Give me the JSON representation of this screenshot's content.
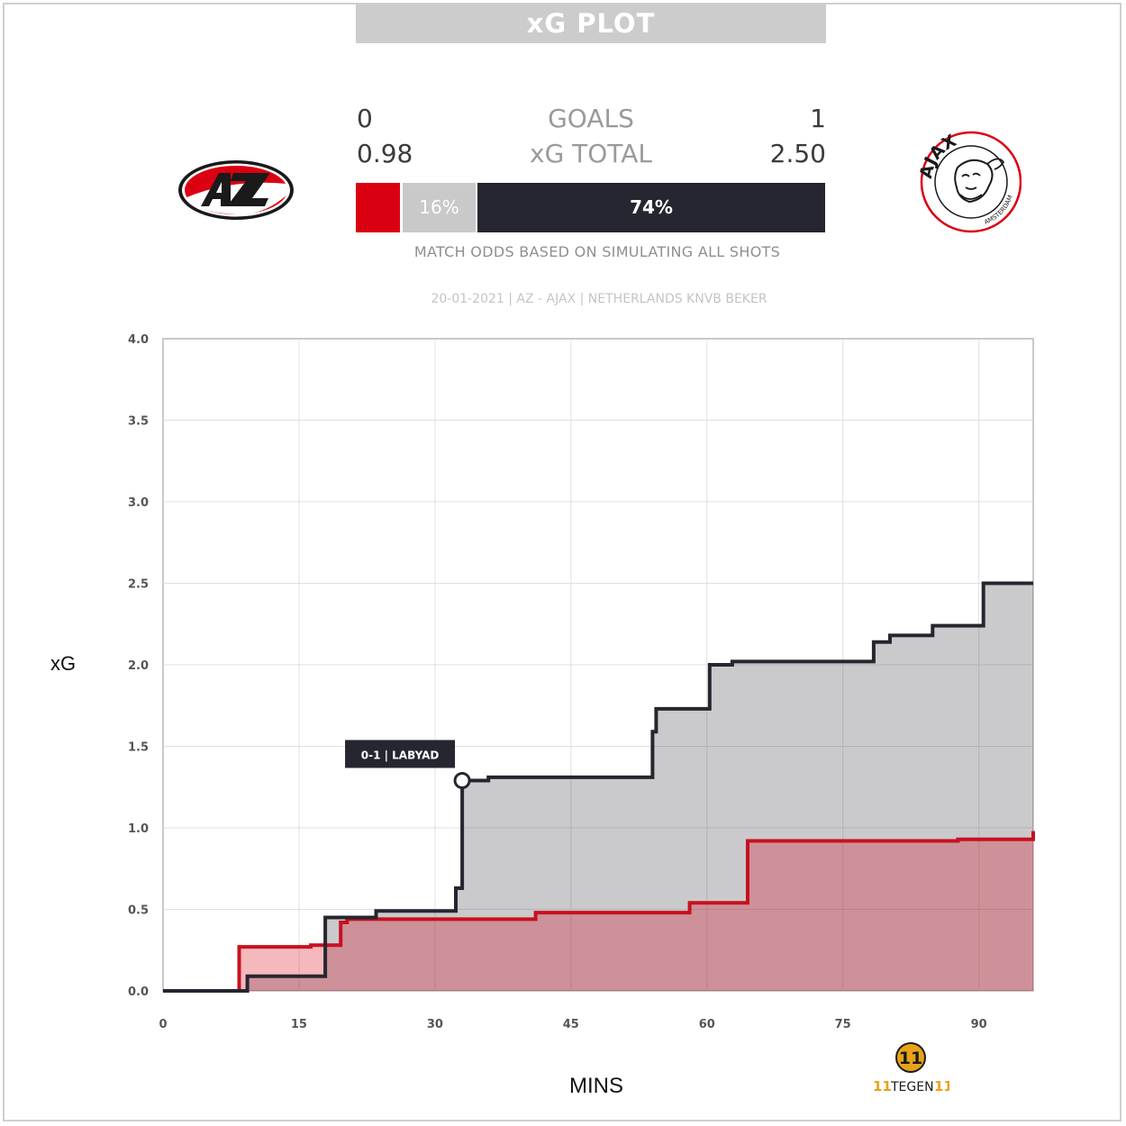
{
  "title": "xG PLOT",
  "teams": {
    "home": {
      "name": "AZ",
      "goals": "0",
      "xg_total": "0.98",
      "color": "#db0011"
    },
    "away": {
      "name": "AJAX",
      "goals": "1",
      "xg_total": "2.50",
      "color": "#262630",
      "logo_ring_text": "AJAX",
      "logo_sub_text": "AMSTERDAM"
    }
  },
  "labels": {
    "goals": "GOALS",
    "xg_total": "xG TOTAL"
  },
  "odds": {
    "home_pct": 10,
    "draw_pct": 16,
    "away_pct": 74,
    "draw_label": "16%",
    "away_label": "74%"
  },
  "odds_note": "MATCH ODDS BASED ON SIMULATING ALL SHOTS",
  "subtitle": "20-01-2021 | AZ - AJAX | NETHERLANDS KNVB BEKER",
  "brand": {
    "icon_text": "11",
    "name_prefix": "11",
    "name_main": "TEGEN",
    "name_suffix": "11"
  },
  "chart_data": {
    "type": "line",
    "xlabel": "MINS",
    "ylabel": "xG",
    "xlim": [
      0,
      96
    ],
    "ylim": [
      0,
      4
    ],
    "x_ticks": [
      0,
      15,
      30,
      45,
      60,
      75,
      90
    ],
    "y_ticks": [
      "0.0",
      "0.5",
      "1.0",
      "1.5",
      "2.0",
      "2.5",
      "3.0",
      "3.5",
      "4.0"
    ],
    "grid": true,
    "step": true,
    "series": [
      {
        "team": "AZ",
        "color": "#c8101e",
        "points": [
          [
            0,
            0
          ],
          [
            8.4,
            0
          ],
          [
            8.4,
            0.27
          ],
          [
            16.3,
            0.27
          ],
          [
            16.3,
            0.28
          ],
          [
            19.6,
            0.28
          ],
          [
            19.6,
            0.42
          ],
          [
            20.3,
            0.42
          ],
          [
            20.3,
            0.44
          ],
          [
            41.1,
            0.44
          ],
          [
            41.1,
            0.48
          ],
          [
            58.1,
            0.48
          ],
          [
            58.1,
            0.54
          ],
          [
            64.5,
            0.54
          ],
          [
            64.5,
            0.92
          ],
          [
            87.7,
            0.92
          ],
          [
            87.7,
            0.93
          ],
          [
            96,
            0.93
          ],
          [
            96,
            0.98
          ]
        ]
      },
      {
        "team": "AJAX",
        "color": "#262630",
        "points": [
          [
            0,
            0
          ],
          [
            9.3,
            0
          ],
          [
            9.3,
            0.09
          ],
          [
            17.9,
            0.09
          ],
          [
            17.9,
            0.45
          ],
          [
            23.5,
            0.45
          ],
          [
            23.5,
            0.49
          ],
          [
            32.3,
            0.49
          ],
          [
            32.3,
            0.63
          ],
          [
            33.0,
            0.63
          ],
          [
            33.0,
            1.29
          ],
          [
            35.9,
            1.29
          ],
          [
            35.9,
            1.31
          ],
          [
            54.0,
            1.31
          ],
          [
            54.0,
            1.59
          ],
          [
            54.4,
            1.59
          ],
          [
            54.4,
            1.73
          ],
          [
            60.3,
            1.73
          ],
          [
            60.3,
            2.0
          ],
          [
            62.8,
            2.0
          ],
          [
            62.8,
            2.02
          ],
          [
            78.4,
            2.02
          ],
          [
            78.4,
            2.14
          ],
          [
            80.2,
            2.14
          ],
          [
            80.2,
            2.18
          ],
          [
            84.9,
            2.18
          ],
          [
            84.9,
            2.24
          ],
          [
            90.5,
            2.24
          ],
          [
            90.5,
            2.5
          ],
          [
            96,
            2.5
          ]
        ]
      }
    ],
    "annotations": [
      {
        "text": "0-1 | LABYAD",
        "x": 33.0,
        "y": 1.29
      }
    ]
  }
}
